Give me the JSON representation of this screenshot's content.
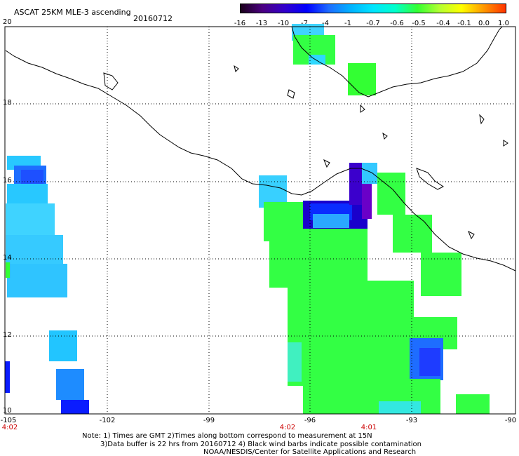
{
  "header": {
    "title": "ASCAT 25KM MLE-3 ascending",
    "date": "20160712"
  },
  "colorbar": {
    "labels": [
      "-16",
      "-13",
      "-10",
      "-7",
      "-4",
      "-1",
      "-0.7",
      "-0.6",
      "-0.5",
      "-0.4",
      "-0.1",
      "0.0",
      "1.0"
    ],
    "colors": [
      "#1a001a",
      "#4b0082",
      "#3300cc",
      "#0000ff",
      "#1e6dff",
      "#00b3ff",
      "#00e5ff",
      "#00ffcc",
      "#33ff33",
      "#b3ff33",
      "#ffff00",
      "#ff9900",
      "#ff3300"
    ]
  },
  "axes": {
    "lat_labels": [
      "20",
      "18",
      "16",
      "14",
      "12",
      "10"
    ],
    "lon_labels": [
      "-105",
      "-102",
      "-99",
      "-96",
      "-93",
      "-90"
    ],
    "time_labels": [
      "4:02",
      "4:02",
      "4:01"
    ]
  },
  "footer": {
    "line1": "Note: 1) Times are GMT 2)Times along bottom correspond to measurement at 15N",
    "line2": "3)Data buffer is 22 hrs from 20160712 4) Black wind barbs indicate possible contamination",
    "line3": "NOAA/NESDIS/Center for Satellite Applications and Research"
  }
}
